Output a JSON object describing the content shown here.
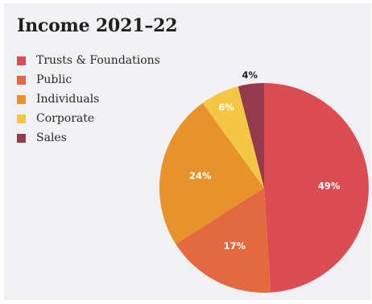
{
  "chart_data": {
    "type": "pie",
    "title": "Income 2021–22",
    "categories": [
      "Trusts & Foundations",
      "Public",
      "Individuals",
      "Corporate",
      "Sales"
    ],
    "values": [
      49,
      17,
      24,
      6,
      4
    ],
    "value_labels": [
      "49%",
      "17%",
      "24%",
      "6%",
      "4%"
    ],
    "colors": [
      "#dc4d53",
      "#e26a3e",
      "#e5932a",
      "#f3c744",
      "#953a4c"
    ],
    "label_colors": [
      "#ffffff",
      "#ffffff",
      "#ffffff",
      "#ffffff",
      "#1f1f1f"
    ],
    "start_angle_deg": 0,
    "direction": "clockwise",
    "legend_position": "top-left"
  }
}
